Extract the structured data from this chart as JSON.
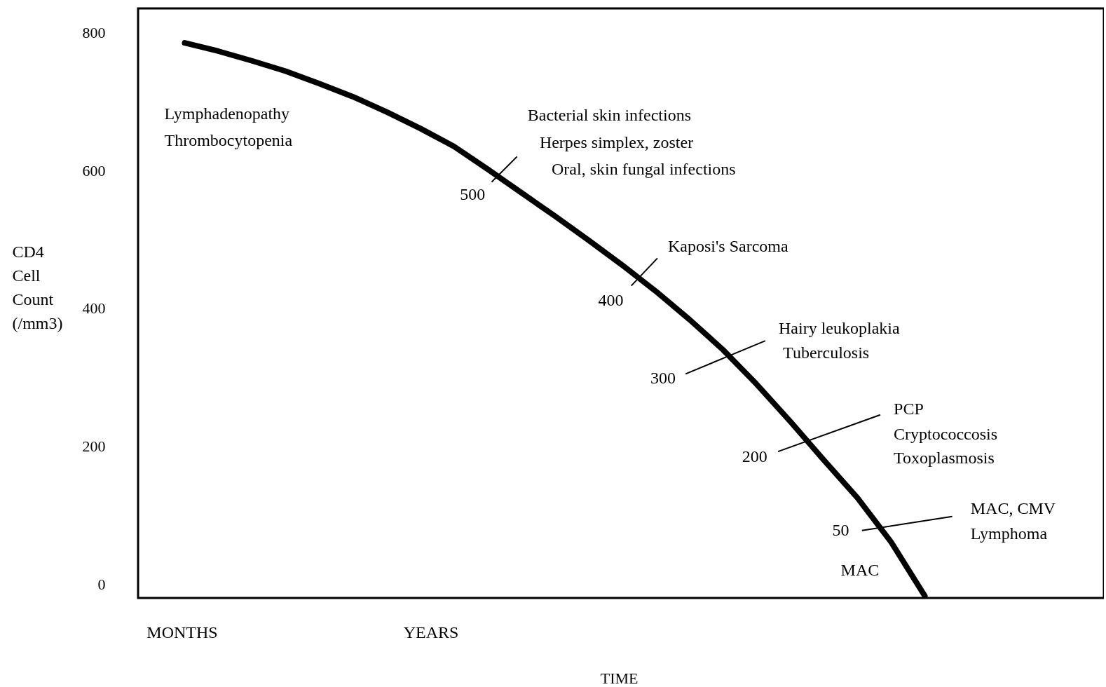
{
  "chart_data": {
    "type": "line",
    "xlabel": "TIME",
    "ylabel": "CD4 Cell Count (/mm3)",
    "categories": [
      null,
      null,
      null,
      null,
      null,
      null,
      null,
      null,
      null,
      null,
      null,
      null,
      null,
      null,
      null,
      null,
      null,
      null,
      null,
      null,
      null,
      null,
      null
    ],
    "series": [
      {
        "color": "#000000",
        "values": [
          785,
          773,
          759,
          744,
          726,
          707,
          685,
          661,
          635,
          602,
          568,
          534,
          499,
          463,
          425,
          384,
          340,
          290,
          236,
          180,
          125,
          61,
          -17
        ]
      }
    ],
    "ylim": [
      -20,
      835
    ],
    "yticks": [
      0,
      200,
      400,
      600,
      800
    ],
    "grid": false,
    "tick_labels": "y",
    "line_style": "solid",
    "annotations": [
      "Lymphadenopathy",
      "Thrombocytopenia",
      "Bacterial skin infections",
      "Herpes simplex, zoster",
      "Oral, skin fungal infections",
      "500",
      "Kaposi's Sarcoma",
      "400",
      "Hairy leukoplakia",
      "Tuberculosis",
      "300",
      "PCP",
      "Cryptococcosis",
      "Toxoplasmosis",
      "200",
      "MAC, CMV",
      "Lymphoma",
      "50",
      "MAC",
      "MONTHS",
      "YEARS"
    ]
  }
}
